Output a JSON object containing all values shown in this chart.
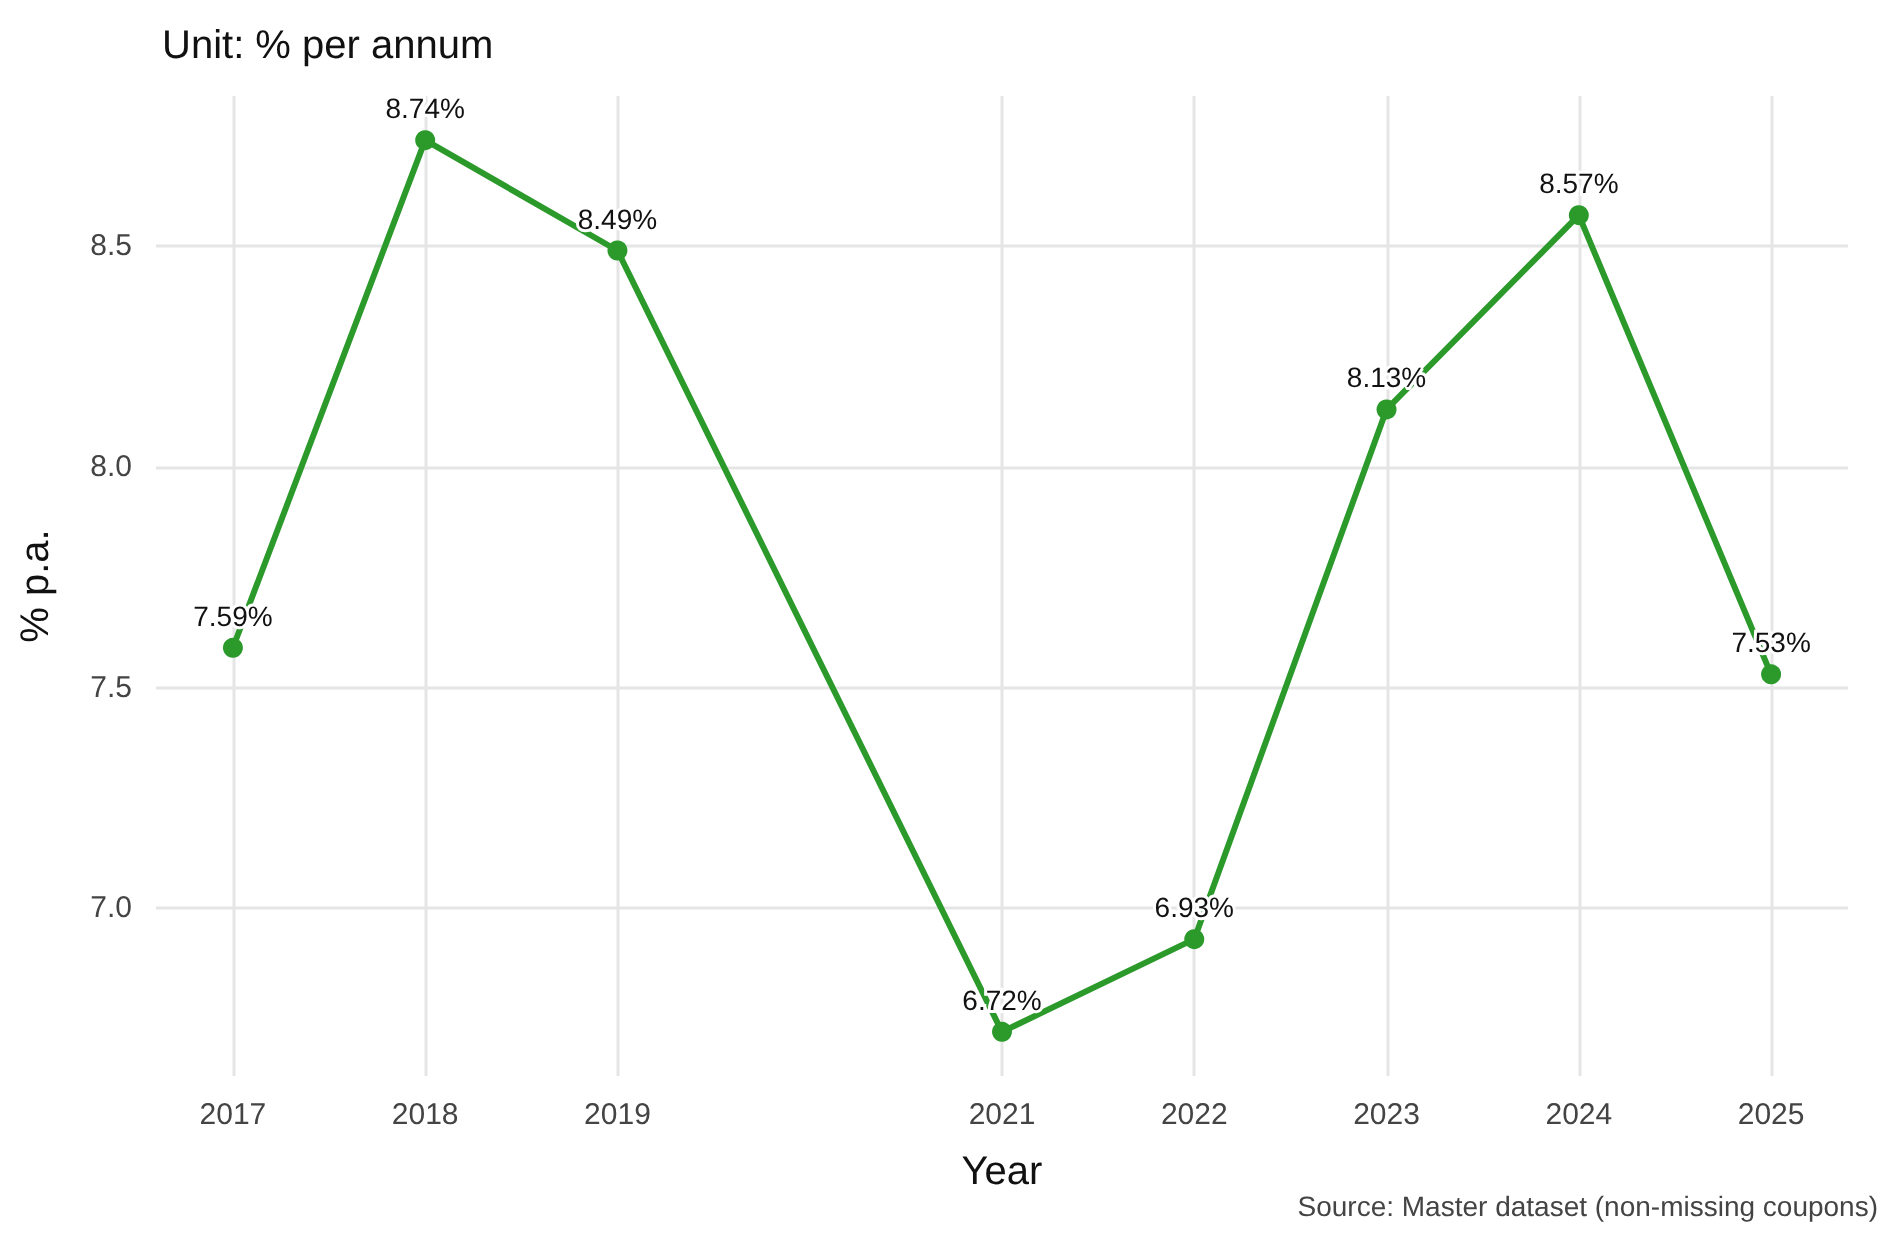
{
  "chart_data": {
    "type": "line",
    "title": "Unit: % per annum",
    "xlabel": "Year",
    "ylabel": "% p.a.",
    "x": [
      2017,
      2018,
      2019,
      2021,
      2022,
      2023,
      2024,
      2025
    ],
    "series": [
      {
        "color": "#2b9a2b",
        "values": [
          7.59,
          8.74,
          8.49,
          6.72,
          6.93,
          8.13,
          8.57,
          7.53
        ],
        "value_labels": [
          "7.59%",
          "8.74%",
          "8.49%",
          "6.72%",
          "6.93%",
          "8.13%",
          "8.57%",
          "7.53%"
        ]
      }
    ],
    "xlim": [
      2016.6,
      2025.4
    ],
    "xticks": [
      2017,
      2018,
      2019,
      2021,
      2022,
      2023,
      2024,
      2025
    ],
    "ylim": [
      6.62,
      8.84
    ],
    "yticks": [
      {
        "value": 7,
        "label": "7.0"
      },
      7.5,
      {
        "value": 8,
        "label": "8.0"
      },
      8.5
    ],
    "grid": true,
    "marker": "circle",
    "line_style": "solid",
    "annotations": [
      "Source: Master dataset (non-missing coupons)"
    ]
  }
}
